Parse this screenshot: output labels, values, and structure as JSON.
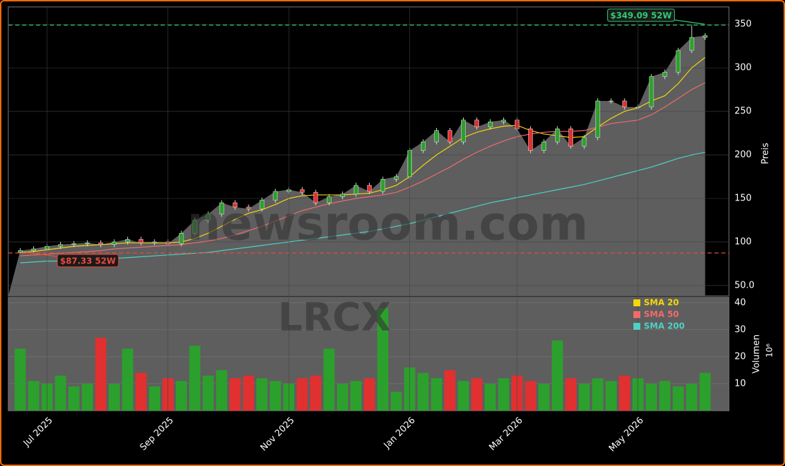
{
  "chart_data": [
    {
      "type": "candlestick",
      "ylabel": "Preis",
      "watermark": "newsroom.com",
      "categories": [
        null,
        null,
        "Jul 2025",
        null,
        null,
        null,
        null,
        null,
        null,
        null,
        null,
        "Sep 2025",
        null,
        null,
        null,
        null,
        null,
        null,
        null,
        null,
        "Nov 2025",
        null,
        null,
        null,
        null,
        null,
        null,
        null,
        null,
        "Jan 2026",
        null,
        null,
        null,
        null,
        null,
        null,
        null,
        "Mar 2026",
        null,
        null,
        null,
        null,
        null,
        null,
        null,
        null,
        "May 2026",
        null,
        null,
        null,
        null,
        null
      ],
      "open": [
        88,
        90,
        92,
        95,
        97,
        98,
        99,
        97,
        100,
        103,
        99,
        100,
        98,
        110,
        125,
        132,
        145,
        140,
        138,
        148,
        158,
        160,
        157,
        145,
        152,
        155,
        165,
        158,
        172,
        175,
        205,
        215,
        228,
        215,
        240,
        232,
        238,
        240,
        230,
        205,
        215,
        230,
        210,
        220,
        262,
        262,
        255,
        255,
        290,
        295,
        320,
        335
      ],
      "high": [
        93,
        95,
        98,
        100,
        101,
        102,
        102,
        103,
        106,
        106,
        103,
        103,
        113,
        128,
        135,
        148,
        148,
        143,
        151,
        161,
        163,
        163,
        160,
        155,
        158,
        168,
        168,
        175,
        178,
        208,
        218,
        231,
        231,
        243,
        243,
        241,
        243,
        243,
        233,
        218,
        233,
        233,
        223,
        265,
        265,
        265,
        258,
        293,
        298,
        323,
        349.09,
        340
      ],
      "low": [
        87.33,
        88,
        89,
        92,
        94,
        95,
        94,
        94,
        97,
        96,
        96,
        95,
        95,
        107,
        122,
        129,
        137,
        135,
        135,
        145,
        155,
        154,
        142,
        142,
        149,
        152,
        155,
        155,
        169,
        172,
        202,
        212,
        212,
        212,
        229,
        229,
        235,
        227,
        202,
        202,
        212,
        207,
        207,
        217,
        259,
        252,
        252,
        252,
        287,
        292,
        317,
        332
      ],
      "close": [
        90,
        92,
        95,
        97,
        98,
        99,
        97,
        100,
        103,
        99,
        100,
        98,
        110,
        125,
        132,
        145,
        140,
        138,
        148,
        158,
        160,
        157,
        145,
        152,
        155,
        165,
        158,
        172,
        175,
        205,
        215,
        228,
        215,
        240,
        232,
        238,
        240,
        230,
        205,
        215,
        230,
        210,
        220,
        262,
        262,
        255,
        255,
        290,
        295,
        320,
        335,
        337
      ],
      "up_color": "#2ca02c",
      "down_color": "#e03030",
      "area_color": "#5e5e5e",
      "series": [
        {
          "name": "SMA 20",
          "color": "#f5d60a",
          "values": [
            88,
            89,
            91,
            93,
            95,
            96,
            97,
            98,
            99,
            99,
            99,
            99,
            100,
            104,
            110,
            118,
            126,
            133,
            137,
            143,
            150,
            153,
            154,
            154,
            154,
            155,
            156,
            160,
            165,
            175,
            188,
            200,
            210,
            220,
            226,
            230,
            233,
            234,
            228,
            224,
            222,
            220,
            221,
            232,
            242,
            250,
            254,
            262,
            268,
            282,
            300,
            312
          ]
        },
        {
          "name": "SMA 50",
          "color": "#f26b6b",
          "values": [
            84,
            85,
            86,
            87,
            88,
            89,
            90,
            92,
            93,
            94,
            95,
            96,
            97,
            99,
            101,
            104,
            108,
            113,
            118,
            124,
            130,
            136,
            140,
            144,
            147,
            150,
            152,
            154,
            157,
            163,
            170,
            178,
            186,
            195,
            203,
            210,
            216,
            221,
            224,
            226,
            227,
            227,
            228,
            232,
            236,
            238,
            240,
            246,
            255,
            265,
            275,
            283
          ]
        },
        {
          "name": "SMA 200",
          "color": "#4fd1c5",
          "values": [
            76,
            77,
            78,
            78,
            79,
            80,
            80,
            81,
            82,
            83,
            84,
            85,
            86,
            87,
            88,
            90,
            92,
            94,
            96,
            98,
            100,
            102,
            104,
            106,
            108,
            110,
            112,
            115,
            118,
            121,
            125,
            129,
            133,
            137,
            141,
            145,
            148,
            151,
            154,
            157,
            160,
            163,
            166,
            170,
            174,
            178,
            182,
            186,
            191,
            196,
            200,
            203
          ]
        }
      ],
      "hlines": [
        {
          "value": 349.09,
          "label": "$349.09 52W",
          "color": "#2ecc71"
        },
        {
          "value": 87.33,
          "label": "$87.33 52W",
          "color": "#e74c3c"
        }
      ],
      "ylim": [
        38,
        370
      ],
      "yticks": [
        {
          "value": 50,
          "label": "50.0"
        },
        100,
        150,
        200,
        250,
        300,
        350
      ],
      "grid": true
    },
    {
      "type": "bar",
      "ylabel": "Volumen",
      "offset_label": "10⁶",
      "watermark": "LRCX",
      "values": [
        23,
        11,
        10,
        13,
        9,
        10,
        27,
        10,
        23,
        14,
        9,
        12,
        11,
        24,
        13,
        15,
        12,
        13,
        12,
        11,
        10,
        12,
        13,
        23,
        10,
        11,
        12,
        38,
        7,
        16,
        14,
        12,
        15,
        11,
        12,
        10,
        12,
        13,
        11,
        10,
        26,
        12,
        10,
        12,
        11,
        13,
        12,
        10,
        11,
        9,
        10,
        14
      ],
      "ylim": [
        0,
        42
      ],
      "yticks": [
        10,
        20,
        30,
        40
      ],
      "grid": true
    }
  ]
}
